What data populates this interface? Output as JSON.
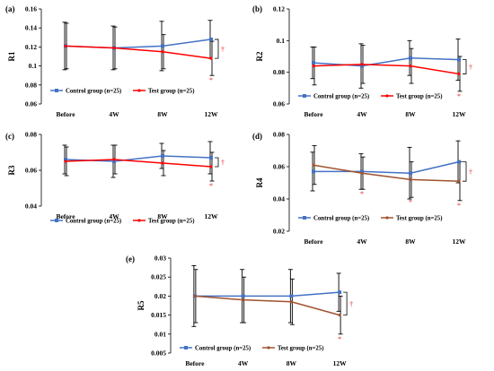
{
  "chart_data": [
    {
      "panel_label": "(a)",
      "type": "line",
      "ylabel": "R1",
      "ylim": [
        0.06,
        0.16
      ],
      "yticks": [
        "0.06",
        "0.08",
        "0.1",
        "0.12",
        "0.14",
        "0.16"
      ],
      "categories": [
        "Before",
        "4W",
        "8W",
        "12W"
      ],
      "series": [
        {
          "name": "Control group (n=25)",
          "color": "#4472c4",
          "values": [
            0.121,
            0.119,
            0.121,
            0.128
          ],
          "err": [
            0.025,
            0.023,
            0.026,
            0.02
          ]
        },
        {
          "name": "Test group (n=25)",
          "color": "#ff0000",
          "values": [
            0.121,
            0.119,
            0.115,
            0.108
          ],
          "err": [
            0.024,
            0.022,
            0.018,
            0.018
          ]
        }
      ],
      "stars": [
        "12W"
      ],
      "dagger": "†"
    },
    {
      "panel_label": "(b)",
      "type": "line",
      "ylabel": "R2",
      "ylim": [
        0.06,
        0.12
      ],
      "yticks": [
        "0.06",
        "0.08",
        "0.1",
        "0.12"
      ],
      "categories": [
        "Before",
        "4W",
        "8W",
        "12W"
      ],
      "series": [
        {
          "name": "Control group (n=25)",
          "color": "#4472c4",
          "values": [
            0.086,
            0.084,
            0.089,
            0.088
          ],
          "err": [
            0.01,
            0.014,
            0.011,
            0.013
          ]
        },
        {
          "name": "Test group (n=25)",
          "color": "#ff0000",
          "values": [
            0.084,
            0.085,
            0.084,
            0.079
          ],
          "err": [
            0.012,
            0.012,
            0.011,
            0.011
          ]
        }
      ],
      "stars": [
        "12W"
      ],
      "dagger": "†"
    },
    {
      "panel_label": "(c)",
      "type": "line",
      "ylabel": "R3",
      "ylim": [
        0.04,
        0.08
      ],
      "yticks": [
        "0.04",
        "0.06",
        "0.08"
      ],
      "categories": [
        "Before",
        "4W",
        "8W",
        "12W"
      ],
      "series": [
        {
          "name": "Control group (n=25)",
          "color": "#4472c4",
          "values": [
            0.066,
            0.065,
            0.068,
            0.067
          ],
          "err": [
            0.008,
            0.009,
            0.007,
            0.009
          ]
        },
        {
          "name": "Test group (n=25)",
          "color": "#ff0000",
          "values": [
            0.065,
            0.066,
            0.064,
            0.062
          ],
          "err": [
            0.008,
            0.008,
            0.007,
            0.008
          ]
        }
      ],
      "stars": [
        "12W"
      ],
      "dagger": "†"
    },
    {
      "panel_label": "(d)",
      "type": "line",
      "ylabel": "R4",
      "ylim": [
        0.02,
        0.08
      ],
      "yticks": [
        "0.02",
        "0.04",
        "0.06",
        "0.08"
      ],
      "categories": [
        "Before",
        "4W",
        "8W",
        "12W"
      ],
      "series": [
        {
          "name": "Control group (n=25)",
          "color": "#4472c4",
          "values": [
            0.057,
            0.057,
            0.056,
            0.063
          ],
          "err": [
            0.012,
            0.011,
            0.016,
            0.013
          ]
        },
        {
          "name": "Test group (n=25)",
          "color": "#a0522d",
          "values": [
            0.061,
            0.056,
            0.052,
            0.051
          ],
          "err": [
            0.012,
            0.01,
            0.011,
            0.012
          ]
        }
      ],
      "stars": [
        "4W",
        "8W",
        "12W"
      ],
      "dagger": "†"
    },
    {
      "panel_label": "(e)",
      "type": "line",
      "ylabel": "R5",
      "ylim": [
        0.005,
        0.03
      ],
      "yticks": [
        "0.005",
        "0.01",
        "0.015",
        "0.02",
        "0.025",
        "0.03"
      ],
      "categories": [
        "Before",
        "4W",
        "8W",
        "12W"
      ],
      "series": [
        {
          "name": "Control group (n=25)",
          "color": "#4472c4",
          "values": [
            0.02,
            0.02,
            0.02,
            0.021
          ],
          "err": [
            0.008,
            0.007,
            0.007,
            0.005
          ]
        },
        {
          "name": "Test group (n=25)",
          "color": "#a0522d",
          "values": [
            0.02,
            0.019,
            0.0185,
            0.015
          ],
          "err": [
            0.007,
            0.006,
            0.006,
            0.005
          ]
        }
      ],
      "stars": [
        "12W"
      ],
      "dagger": "†"
    }
  ]
}
